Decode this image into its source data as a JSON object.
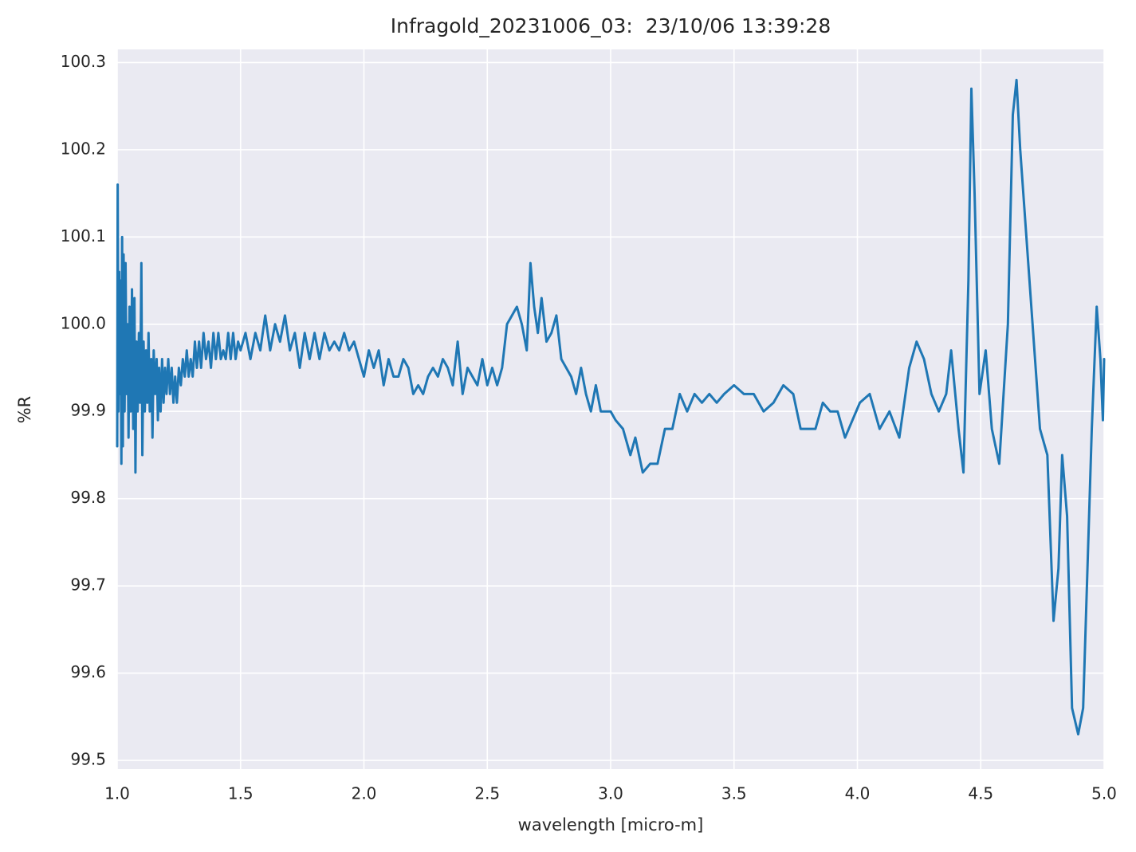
{
  "chart_data": {
    "type": "line",
    "title": "Infragold_20231006_03:  23/10/06 13:39:28",
    "x_label": "wavelength [micro-m]",
    "y_label": "%R",
    "color": "#1f77b4",
    "grid": true,
    "xlim": [
      1,
      5
    ],
    "xticks": [
      {
        "value": 1,
        "label": "1.0"
      },
      1.5,
      {
        "value": 2,
        "label": "2.0"
      },
      2.5,
      {
        "value": 3,
        "label": "3.0"
      },
      3.5,
      {
        "value": 4,
        "label": "4.0"
      },
      4.5,
      {
        "value": 5,
        "label": "5.0"
      }
    ],
    "ylim": [
      99.49,
      100.315
    ],
    "yticks": [
      99.5,
      99.6,
      99.7,
      99.8,
      99.9,
      {
        "value": 100,
        "label": "100.0"
      },
      100.1,
      100.2,
      100.3
    ],
    "x": [
      1.0,
      1.002,
      1.005,
      1.008,
      1.011,
      1.014,
      1.017,
      1.02,
      1.023,
      1.026,
      1.03,
      1.034,
      1.038,
      1.042,
      1.046,
      1.05,
      1.055,
      1.06,
      1.065,
      1.07,
      1.074,
      1.078,
      1.083,
      1.088,
      1.093,
      1.098,
      1.102,
      1.107,
      1.112,
      1.117,
      1.122,
      1.127,
      1.132,
      1.138,
      1.143,
      1.148,
      1.154,
      1.16,
      1.165,
      1.17,
      1.176,
      1.182,
      1.188,
      1.194,
      1.2,
      1.207,
      1.214,
      1.221,
      1.228,
      1.235,
      1.242,
      1.25,
      1.258,
      1.266,
      1.274,
      1.282,
      1.29,
      1.298,
      1.306,
      1.315,
      1.323,
      1.332,
      1.34,
      1.35,
      1.36,
      1.37,
      1.38,
      1.39,
      1.4,
      1.41,
      1.42,
      1.43,
      1.44,
      1.45,
      1.46,
      1.47,
      1.48,
      1.49,
      1.5,
      1.52,
      1.54,
      1.56,
      1.58,
      1.6,
      1.62,
      1.64,
      1.66,
      1.68,
      1.7,
      1.72,
      1.74,
      1.76,
      1.78,
      1.8,
      1.82,
      1.84,
      1.86,
      1.88,
      1.9,
      1.92,
      1.94,
      1.96,
      1.98,
      2.0,
      2.02,
      2.04,
      2.06,
      2.08,
      2.1,
      2.12,
      2.14,
      2.16,
      2.18,
      2.2,
      2.22,
      2.24,
      2.26,
      2.28,
      2.3,
      2.32,
      2.34,
      2.36,
      2.38,
      2.4,
      2.42,
      2.44,
      2.46,
      2.48,
      2.5,
      2.52,
      2.54,
      2.56,
      2.58,
      2.6,
      2.62,
      2.64,
      2.66,
      2.675,
      2.69,
      2.705,
      2.72,
      2.74,
      2.76,
      2.78,
      2.8,
      2.82,
      2.84,
      2.86,
      2.88,
      2.9,
      2.92,
      2.94,
      2.96,
      2.98,
      3.0,
      3.02,
      3.05,
      3.08,
      3.1,
      3.13,
      3.16,
      3.19,
      3.22,
      3.25,
      3.28,
      3.31,
      3.34,
      3.37,
      3.4,
      3.43,
      3.46,
      3.5,
      3.54,
      3.58,
      3.62,
      3.66,
      3.7,
      3.74,
      3.77,
      3.8,
      3.83,
      3.86,
      3.89,
      3.92,
      3.95,
      3.98,
      4.01,
      4.05,
      4.09,
      4.13,
      4.17,
      4.21,
      4.24,
      4.27,
      4.3,
      4.33,
      4.36,
      4.38,
      4.41,
      4.43,
      4.45,
      4.462,
      4.475,
      4.495,
      4.52,
      4.545,
      4.575,
      4.61,
      4.63,
      4.645,
      4.66,
      4.7,
      4.74,
      4.77,
      4.795,
      4.815,
      4.83,
      4.85,
      4.87,
      4.895,
      4.915,
      4.95,
      4.97,
      4.985,
      4.995,
      5.0
    ],
    "values": [
      99.86,
      100.16,
      99.9,
      100.06,
      99.92,
      100.05,
      99.84,
      100.1,
      99.86,
      100.08,
      99.9,
      100.07,
      99.92,
      100.0,
      99.87,
      100.02,
      99.9,
      100.04,
      99.88,
      100.03,
      99.83,
      99.98,
      99.9,
      99.99,
      99.91,
      100.07,
      99.85,
      99.98,
      99.9,
      99.97,
      99.91,
      99.99,
      99.9,
      99.96,
      99.87,
      99.97,
      99.92,
      99.96,
      99.89,
      99.95,
      99.9,
      99.96,
      99.91,
      99.95,
      99.92,
      99.96,
      99.92,
      99.95,
      99.91,
      99.94,
      99.91,
      99.95,
      99.93,
      99.96,
      99.94,
      99.97,
      99.94,
      99.96,
      99.94,
      99.98,
      99.95,
      99.98,
      99.95,
      99.99,
      99.96,
      99.98,
      99.95,
      99.99,
      99.96,
      99.99,
      99.96,
      99.97,
      99.96,
      99.99,
      99.96,
      99.99,
      99.96,
      99.98,
      99.97,
      99.99,
      99.96,
      99.99,
      99.97,
      100.01,
      99.97,
      100.0,
      99.98,
      100.01,
      99.97,
      99.99,
      99.95,
      99.99,
      99.96,
      99.99,
      99.96,
      99.99,
      99.97,
      99.98,
      99.97,
      99.99,
      99.97,
      99.98,
      99.96,
      99.94,
      99.97,
      99.95,
      99.97,
      99.93,
      99.96,
      99.94,
      99.94,
      99.96,
      99.95,
      99.92,
      99.93,
      99.92,
      99.94,
      99.95,
      99.94,
      99.96,
      99.95,
      99.93,
      99.98,
      99.92,
      99.95,
      99.94,
      99.93,
      99.96,
      99.93,
      99.95,
      99.93,
      99.95,
      100.0,
      100.01,
      100.02,
      100.0,
      99.97,
      100.07,
      100.02,
      99.99,
      100.03,
      99.98,
      99.99,
      100.01,
      99.96,
      99.95,
      99.94,
      99.92,
      99.95,
      99.92,
      99.9,
      99.93,
      99.9,
      99.9,
      99.9,
      99.89,
      99.88,
      99.85,
      99.87,
      99.83,
      99.84,
      99.84,
      99.88,
      99.88,
      99.92,
      99.9,
      99.92,
      99.91,
      99.92,
      99.91,
      99.92,
      99.93,
      99.92,
      99.92,
      99.9,
      99.91,
      99.93,
      99.92,
      99.88,
      99.88,
      99.88,
      99.91,
      99.9,
      99.9,
      99.87,
      99.89,
      99.91,
      99.92,
      99.88,
      99.9,
      99.87,
      99.95,
      99.98,
      99.96,
      99.92,
      99.9,
      99.92,
      99.97,
      99.88,
      99.83,
      100.05,
      100.27,
      100.15,
      99.92,
      99.97,
      99.88,
      99.84,
      100.0,
      100.24,
      100.28,
      100.2,
      100.04,
      99.88,
      99.85,
      99.66,
      99.72,
      99.85,
      99.78,
      99.56,
      99.53,
      99.56,
      99.88,
      100.02,
      99.96,
      99.89,
      99.96
    ]
  }
}
